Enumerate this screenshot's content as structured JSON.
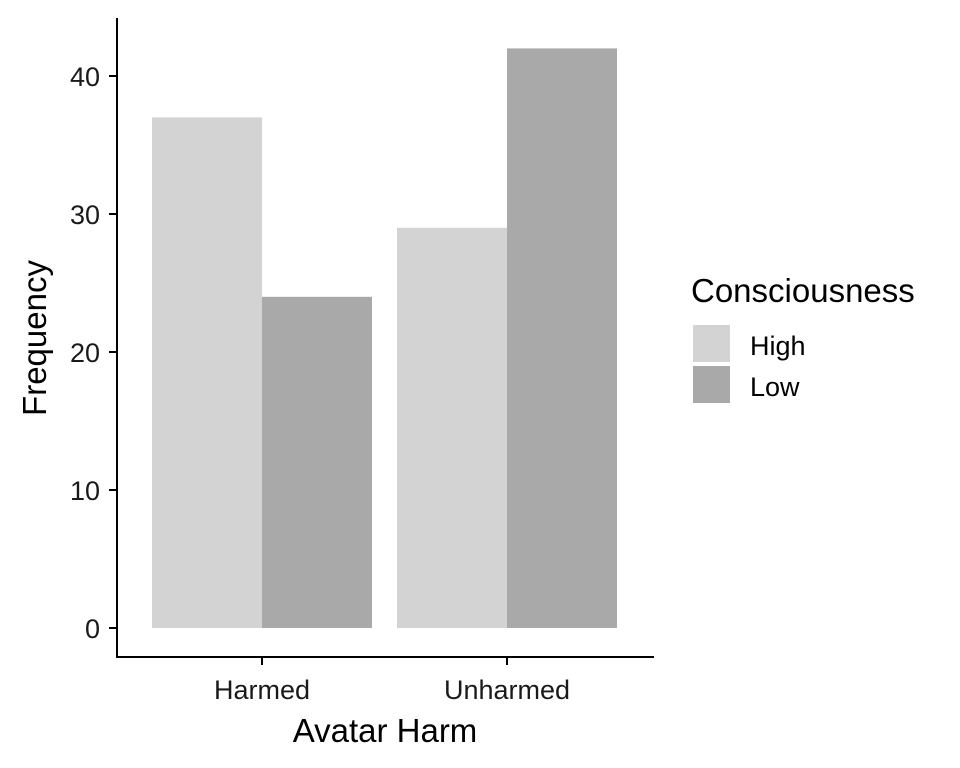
{
  "chart_data": {
    "type": "bar",
    "categories": [
      "Harmed",
      "Unharmed"
    ],
    "series": [
      {
        "name": "High",
        "values": [
          37,
          29
        ],
        "color": "#d3d3d3"
      },
      {
        "name": "Low",
        "values": [
          24,
          42
        ],
        "color": "#a9a9a9"
      }
    ],
    "xlabel": "Avatar Harm",
    "ylabel": "Frequency",
    "ylim": [
      0,
      44
    ],
    "yticks": [
      0,
      10,
      20,
      30,
      40
    ],
    "legend": {
      "title": "Consciousness",
      "placement": "right"
    },
    "grid": false
  }
}
